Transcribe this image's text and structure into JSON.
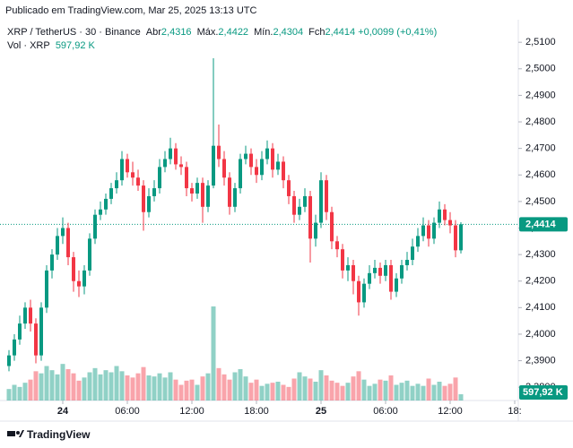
{
  "published": "Publicado em TradingView.com, Mar 25, 2025 13:13 UTC",
  "header": {
    "symbol": "XRP / TetherUS · 30 · Binance",
    "fields": [
      {
        "label": "Abr",
        "value": "2,4316"
      },
      {
        "label": "Máx.",
        "value": "2,4422"
      },
      {
        "label": "Mín.",
        "value": "2,4304"
      },
      {
        "label": "Fch",
        "value": "2,4414"
      }
    ],
    "change": "+0,0099 (+0,41%)",
    "volume_label": "Vol · XRP",
    "volume_value": "597,92 K"
  },
  "footer": "TradingView",
  "chart_data": {
    "type": "candlestick",
    "up_color": "#089981",
    "down_color": "#f23645",
    "open": [
      2.388,
      2.392,
      2.398,
      2.404,
      2.41,
      2.404,
      2.392,
      2.41,
      2.424,
      2.43,
      2.437,
      2.44,
      2.429,
      2.42,
      2.418,
      2.424,
      2.436,
      2.445,
      2.447,
      2.451,
      2.455,
      2.458,
      2.466,
      2.461,
      2.459,
      2.456,
      2.446,
      2.452,
      2.455,
      2.463,
      2.466,
      2.47,
      2.464,
      2.463,
      2.455,
      2.453,
      2.457,
      2.448,
      2.456,
      2.471,
      2.466,
      2.459,
      2.448,
      2.455,
      2.466,
      2.468,
      2.463,
      2.46,
      2.466,
      2.47,
      2.462,
      2.465,
      2.458,
      2.452,
      2.445,
      2.448,
      2.452,
      2.436,
      2.442,
      2.458,
      2.446,
      2.435,
      2.432,
      2.424,
      2.426,
      2.42,
      2.412,
      2.419,
      2.423,
      2.425,
      2.422,
      2.426,
      2.416,
      2.421,
      2.426,
      2.428,
      2.433,
      2.437,
      2.441,
      2.436,
      2.442,
      2.447,
      2.443,
      2.441,
      2.4316
    ],
    "high": [
      2.394,
      2.4,
      2.407,
      2.412,
      2.413,
      2.406,
      2.412,
      2.426,
      2.432,
      2.44,
      2.444,
      2.442,
      2.431,
      2.424,
      2.426,
      2.438,
      2.447,
      2.45,
      2.453,
      2.457,
      2.461,
      2.469,
      2.468,
      2.465,
      2.462,
      2.458,
      2.455,
      2.458,
      2.466,
      2.469,
      2.474,
      2.472,
      2.467,
      2.465,
      2.457,
      2.459,
      2.459,
      2.458,
      2.504,
      2.479,
      2.469,
      2.461,
      2.457,
      2.468,
      2.471,
      2.47,
      2.466,
      2.469,
      2.473,
      2.472,
      2.468,
      2.467,
      2.46,
      2.454,
      2.451,
      2.455,
      2.454,
      2.445,
      2.461,
      2.46,
      2.448,
      2.437,
      2.434,
      2.429,
      2.428,
      2.422,
      2.421,
      2.426,
      2.428,
      2.427,
      2.428,
      2.428,
      2.423,
      2.428,
      2.431,
      2.436,
      2.44,
      2.444,
      2.443,
      2.444,
      2.45,
      2.449,
      2.446,
      2.443,
      2.4422
    ],
    "low": [
      2.386,
      2.39,
      2.396,
      2.402,
      2.401,
      2.389,
      2.39,
      2.408,
      2.421,
      2.428,
      2.434,
      2.426,
      2.416,
      2.414,
      2.415,
      2.422,
      2.434,
      2.443,
      2.445,
      2.449,
      2.453,
      2.456,
      2.459,
      2.456,
      2.454,
      2.439,
      2.444,
      2.45,
      2.453,
      2.461,
      2.464,
      2.462,
      2.46,
      2.452,
      2.45,
      2.451,
      2.442,
      2.446,
      2.455,
      2.463,
      2.456,
      2.445,
      2.446,
      2.453,
      2.464,
      2.46,
      2.457,
      2.458,
      2.464,
      2.459,
      2.46,
      2.455,
      2.449,
      2.442,
      2.443,
      2.446,
      2.427,
      2.433,
      2.44,
      2.443,
      2.432,
      2.429,
      2.421,
      2.42,
      2.415,
      2.407,
      2.41,
      2.417,
      2.421,
      2.419,
      2.42,
      2.413,
      2.414,
      2.419,
      2.424,
      2.426,
      2.431,
      2.435,
      2.433,
      2.434,
      2.44,
      2.441,
      2.438,
      2.429,
      2.4304
    ],
    "close": [
      2.392,
      2.398,
      2.404,
      2.41,
      2.404,
      2.392,
      2.41,
      2.424,
      2.43,
      2.437,
      2.44,
      2.429,
      2.42,
      2.418,
      2.424,
      2.436,
      2.445,
      2.447,
      2.451,
      2.455,
      2.458,
      2.466,
      2.461,
      2.459,
      2.456,
      2.446,
      2.452,
      2.455,
      2.463,
      2.466,
      2.47,
      2.464,
      2.463,
      2.455,
      2.453,
      2.457,
      2.448,
      2.456,
      2.471,
      2.466,
      2.459,
      2.448,
      2.455,
      2.466,
      2.468,
      2.463,
      2.46,
      2.466,
      2.47,
      2.462,
      2.465,
      2.458,
      2.452,
      2.445,
      2.448,
      2.452,
      2.436,
      2.442,
      2.458,
      2.446,
      2.435,
      2.432,
      2.424,
      2.426,
      2.42,
      2.412,
      2.419,
      2.423,
      2.425,
      2.422,
      2.426,
      2.416,
      2.421,
      2.426,
      2.428,
      2.433,
      2.437,
      2.441,
      2.436,
      2.442,
      2.447,
      2.443,
      2.441,
      2.4316,
      2.4414
    ],
    "volume": [
      1100,
      1500,
      1300,
      1700,
      2000,
      2800,
      2600,
      3300,
      2900,
      2500,
      3500,
      3000,
      2600,
      1900,
      2200,
      2700,
      3100,
      2500,
      2900,
      2700,
      3300,
      2800,
      2400,
      2200,
      2600,
      3200,
      2400,
      2300,
      2600,
      2200,
      2700,
      2000,
      1500,
      1900,
      2000,
      1500,
      2300,
      2600,
      9000,
      3100,
      2500,
      2000,
      2700,
      3000,
      2300,
      1700,
      2000,
      1400,
      1600,
      1700,
      1800,
      1500,
      1300,
      2100,
      2700,
      2300,
      2100,
      1800,
      2900,
      2400,
      1900,
      1700,
      1400,
      1700,
      2300,
      2800,
      2000,
      1400,
      1600,
      2000,
      1900,
      2400,
      1500,
      1700,
      1900,
      1400,
      1600,
      1400,
      2100,
      1500,
      1800,
      1400,
      1600,
      2200,
      597.92
    ],
    "ylim": [
      2.375,
      2.5185
    ],
    "yticks": [
      {
        "value": 2.38,
        "label": "2,3800"
      },
      {
        "value": 2.39,
        "label": "2,3900"
      },
      {
        "value": 2.4,
        "label": "2,4000"
      },
      {
        "value": 2.41,
        "label": "2,4100"
      },
      {
        "value": 2.42,
        "label": "2,4200"
      },
      {
        "value": 2.43,
        "label": "2,4300"
      },
      {
        "value": 2.44,
        "label": "2,4400"
      },
      {
        "value": 2.45,
        "label": "2,4500"
      },
      {
        "value": 2.46,
        "label": "2,4600"
      },
      {
        "value": 2.47,
        "label": "2,4700"
      },
      {
        "value": 2.48,
        "label": "2,4800"
      },
      {
        "value": 2.49,
        "label": "2,4900"
      },
      {
        "value": 2.5,
        "label": "2,5000"
      },
      {
        "value": 2.51,
        "label": "2,5100"
      }
    ],
    "xticks": [
      {
        "value": 10,
        "label": "24"
      },
      {
        "value": 22,
        "label": "06:00"
      },
      {
        "value": 34,
        "label": "12:00"
      },
      {
        "value": 46,
        "label": "18:00"
      },
      {
        "value": 58,
        "label": "25"
      },
      {
        "value": 70,
        "label": "06:00"
      },
      {
        "value": 82,
        "label": "12:00"
      },
      {
        "value": 94,
        "label": "18:"
      }
    ],
    "last_price_label": "2,4414"
  }
}
